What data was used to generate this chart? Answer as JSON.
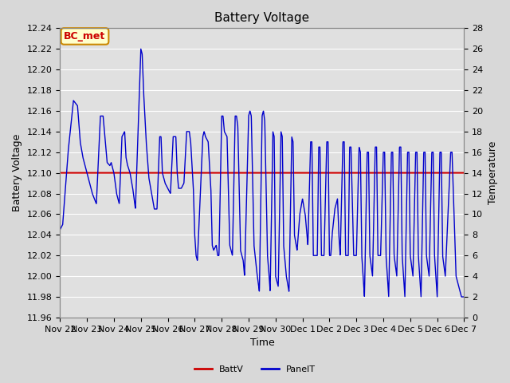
{
  "title": "Battery Voltage",
  "xlabel": "Time",
  "ylabel_left": "Battery Voltage",
  "ylabel_right": "Temperature",
  "x_tick_labels": [
    "Nov 22",
    "Nov 23",
    "Nov 24",
    "Nov 25",
    "Nov 26",
    "Nov 27",
    "Nov 28",
    "Nov 29",
    "Nov 30",
    "Dec 1",
    "Dec 2",
    "Dec 3",
    "Dec 4",
    "Dec 5",
    "Dec 6",
    "Dec 7"
  ],
  "ylim_left": [
    11.96,
    12.24
  ],
  "ylim_right": [
    0,
    28
  ],
  "yticks_left": [
    11.96,
    11.98,
    12.0,
    12.02,
    12.04,
    12.06,
    12.08,
    12.1,
    12.12,
    12.14,
    12.16,
    12.18,
    12.2,
    12.22,
    12.24
  ],
  "yticks_right": [
    0,
    2,
    4,
    6,
    8,
    10,
    12,
    14,
    16,
    18,
    20,
    22,
    24,
    26,
    28
  ],
  "battv_value": 12.1,
  "battv_color": "#cc0000",
  "panelt_color": "#0000cc",
  "bg_color": "#d8d8d8",
  "plot_bg_color": "#e0e0e0",
  "grid_color": "#ffffff",
  "annotation_text": "BC_met",
  "annotation_bg": "#ffffcc",
  "annotation_border": "#cc8800",
  "annotation_text_color": "#cc0000",
  "title_fontsize": 11,
  "label_fontsize": 9,
  "tick_fontsize": 8,
  "panelt_points": [
    [
      0.0,
      12.045
    ],
    [
      0.1,
      12.05
    ],
    [
      0.3,
      12.12
    ],
    [
      0.5,
      12.17
    ],
    [
      0.65,
      12.165
    ],
    [
      0.75,
      12.13
    ],
    [
      0.85,
      12.115
    ],
    [
      0.9,
      12.11
    ],
    [
      1.0,
      12.1
    ],
    [
      1.1,
      12.09
    ],
    [
      1.2,
      12.08
    ],
    [
      1.35,
      12.07
    ],
    [
      1.5,
      12.155
    ],
    [
      1.6,
      12.155
    ],
    [
      1.65,
      12.14
    ],
    [
      1.75,
      12.11
    ],
    [
      1.85,
      12.107
    ],
    [
      1.9,
      12.11
    ],
    [
      2.0,
      12.1
    ],
    [
      2.1,
      12.08
    ],
    [
      2.2,
      12.07
    ],
    [
      2.3,
      12.135
    ],
    [
      2.4,
      12.14
    ],
    [
      2.45,
      12.115
    ],
    [
      2.5,
      12.108
    ],
    [
      2.6,
      12.1
    ],
    [
      2.7,
      12.085
    ],
    [
      2.8,
      12.065
    ],
    [
      3.0,
      12.22
    ],
    [
      3.05,
      12.215
    ],
    [
      3.1,
      12.18
    ],
    [
      3.2,
      12.13
    ],
    [
      3.3,
      12.095
    ],
    [
      3.4,
      12.08
    ],
    [
      3.5,
      12.065
    ],
    [
      3.6,
      12.065
    ],
    [
      3.7,
      12.135
    ],
    [
      3.75,
      12.135
    ],
    [
      3.8,
      12.1
    ],
    [
      3.9,
      12.09
    ],
    [
      4.0,
      12.085
    ],
    [
      4.1,
      12.08
    ],
    [
      4.2,
      12.135
    ],
    [
      4.3,
      12.135
    ],
    [
      4.35,
      12.1
    ],
    [
      4.4,
      12.085
    ],
    [
      4.5,
      12.085
    ],
    [
      4.6,
      12.09
    ],
    [
      4.7,
      12.14
    ],
    [
      4.8,
      12.14
    ],
    [
      4.85,
      12.13
    ],
    [
      4.95,
      12.085
    ],
    [
      5.0,
      12.04
    ],
    [
      5.05,
      12.02
    ],
    [
      5.1,
      12.015
    ],
    [
      5.3,
      12.135
    ],
    [
      5.35,
      12.14
    ],
    [
      5.4,
      12.135
    ],
    [
      5.5,
      12.13
    ],
    [
      5.6,
      12.085
    ],
    [
      5.65,
      12.03
    ],
    [
      5.7,
      12.025
    ],
    [
      5.8,
      12.03
    ],
    [
      5.85,
      12.02
    ],
    [
      5.9,
      12.02
    ],
    [
      6.0,
      12.155
    ],
    [
      6.05,
      12.155
    ],
    [
      6.1,
      12.14
    ],
    [
      6.2,
      12.135
    ],
    [
      6.3,
      12.03
    ],
    [
      6.35,
      12.025
    ],
    [
      6.4,
      12.02
    ],
    [
      6.5,
      12.155
    ],
    [
      6.55,
      12.155
    ],
    [
      6.6,
      12.145
    ],
    [
      6.7,
      12.025
    ],
    [
      6.8,
      12.015
    ],
    [
      6.85,
      12.0
    ],
    [
      7.0,
      12.155
    ],
    [
      7.05,
      12.16
    ],
    [
      7.1,
      12.155
    ],
    [
      7.2,
      12.03
    ],
    [
      7.3,
      12.005
    ],
    [
      7.4,
      11.985
    ],
    [
      7.5,
      12.155
    ],
    [
      7.55,
      12.16
    ],
    [
      7.6,
      12.15
    ],
    [
      7.7,
      12.02
    ],
    [
      7.75,
      12.005
    ],
    [
      7.8,
      11.985
    ],
    [
      7.9,
      12.14
    ],
    [
      7.95,
      12.135
    ],
    [
      8.0,
      12.0
    ],
    [
      8.1,
      11.99
    ],
    [
      8.2,
      12.14
    ],
    [
      8.25,
      12.135
    ],
    [
      8.3,
      12.03
    ],
    [
      8.4,
      12.0
    ],
    [
      8.5,
      11.985
    ],
    [
      8.6,
      12.135
    ],
    [
      8.65,
      12.13
    ],
    [
      8.7,
      12.04
    ],
    [
      8.8,
      12.025
    ],
    [
      8.9,
      12.06
    ],
    [
      9.0,
      12.075
    ],
    [
      9.1,
      12.06
    ],
    [
      9.2,
      12.03
    ],
    [
      9.3,
      12.13
    ],
    [
      9.35,
      12.13
    ],
    [
      9.4,
      12.02
    ],
    [
      9.5,
      12.02
    ],
    [
      9.55,
      12.02
    ],
    [
      9.6,
      12.125
    ],
    [
      9.65,
      12.125
    ],
    [
      9.7,
      12.02
    ],
    [
      9.8,
      12.02
    ],
    [
      9.9,
      12.13
    ],
    [
      9.95,
      12.13
    ],
    [
      10.0,
      12.02
    ],
    [
      10.05,
      12.02
    ],
    [
      10.1,
      12.04
    ],
    [
      10.2,
      12.065
    ],
    [
      10.3,
      12.075
    ],
    [
      10.35,
      12.04
    ],
    [
      10.4,
      12.02
    ],
    [
      10.5,
      12.13
    ],
    [
      10.55,
      12.13
    ],
    [
      10.6,
      12.02
    ],
    [
      10.7,
      12.02
    ],
    [
      10.75,
      12.125
    ],
    [
      10.8,
      12.125
    ],
    [
      10.9,
      12.02
    ],
    [
      11.0,
      12.02
    ],
    [
      11.1,
      12.125
    ],
    [
      11.15,
      12.12
    ],
    [
      11.2,
      12.02
    ],
    [
      11.3,
      11.98
    ],
    [
      11.4,
      12.12
    ],
    [
      11.45,
      12.12
    ],
    [
      11.5,
      12.02
    ],
    [
      11.6,
      12.0
    ],
    [
      11.7,
      12.125
    ],
    [
      11.75,
      12.125
    ],
    [
      11.8,
      12.02
    ],
    [
      11.9,
      12.02
    ],
    [
      12.0,
      12.12
    ],
    [
      12.05,
      12.12
    ],
    [
      12.1,
      12.02
    ],
    [
      12.2,
      11.98
    ],
    [
      12.3,
      12.12
    ],
    [
      12.35,
      12.12
    ],
    [
      12.4,
      12.02
    ],
    [
      12.5,
      12.0
    ],
    [
      12.6,
      12.125
    ],
    [
      12.65,
      12.125
    ],
    [
      12.7,
      12.02
    ],
    [
      12.8,
      11.98
    ],
    [
      12.9,
      12.12
    ],
    [
      12.95,
      12.12
    ],
    [
      13.0,
      12.02
    ],
    [
      13.1,
      12.0
    ],
    [
      13.2,
      12.12
    ],
    [
      13.25,
      12.12
    ],
    [
      13.3,
      12.02
    ],
    [
      13.4,
      11.98
    ],
    [
      13.5,
      12.12
    ],
    [
      13.55,
      12.12
    ],
    [
      13.6,
      12.02
    ],
    [
      13.7,
      12.0
    ],
    [
      13.8,
      12.12
    ],
    [
      13.85,
      12.12
    ],
    [
      13.9,
      12.02
    ],
    [
      14.0,
      11.98
    ],
    [
      14.1,
      12.12
    ],
    [
      14.15,
      12.12
    ],
    [
      14.2,
      12.02
    ],
    [
      14.3,
      12.0
    ],
    [
      14.5,
      12.12
    ],
    [
      14.55,
      12.12
    ],
    [
      14.7,
      12.0
    ],
    [
      14.9,
      11.98
    ],
    [
      15.0,
      11.98
    ]
  ]
}
